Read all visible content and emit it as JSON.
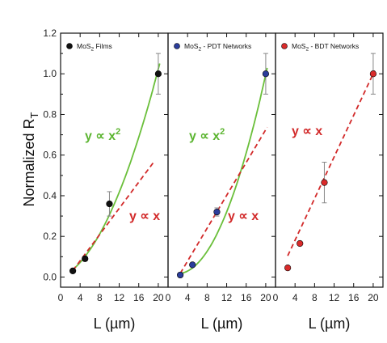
{
  "chart_data": {
    "type": "scatter",
    "ylabel_base": "Normalized R",
    "ylabel_sub": "T",
    "xlabel": "L (µm)",
    "ylim": [
      -0.05,
      1.2
    ],
    "yticks": [
      "0.0",
      "0.2",
      "0.4",
      "0.6",
      "0.8",
      "1.0",
      "1.2"
    ],
    "ytick_values": [
      0.0,
      0.2,
      0.4,
      0.6,
      0.8,
      1.0,
      1.2
    ],
    "xlim": [
      0,
      22
    ],
    "xticks": [
      0,
      4,
      8,
      12,
      16,
      20
    ],
    "colors": {
      "quadratic_fit": "#6abf3a",
      "linear_fit": "#d22a2a",
      "annot_quadratic": "#5cb531",
      "annot_linear": "#d22a2a",
      "films": "#111111",
      "pdt": "#2b3d9b",
      "bdt": "#d92b2b",
      "errorbar": "#888888"
    },
    "panels": [
      {
        "legend_base": "MoS",
        "legend_sub": "2",
        "legend_rest": " Films",
        "marker_color": "#111111",
        "points": [
          {
            "x": 2.5,
            "y": 0.03,
            "err": 0.0
          },
          {
            "x": 5,
            "y": 0.09,
            "err": 0.0
          },
          {
            "x": 10,
            "y": 0.36,
            "err": 0.06
          },
          {
            "x": 20,
            "y": 1.0,
            "err": 0.1
          }
        ],
        "quadratic_fit": {
          "x0": 2.5,
          "x1": 20.3,
          "coef": [
            -0.0029,
            0.0105,
            0.00204
          ]
        },
        "linear_fit": {
          "x0": 2.5,
          "x1": 19.3,
          "coef": [
            -0.049,
            0.03223
          ]
        },
        "annot_quadratic": {
          "base": "y ∝ x",
          "sup": "2"
        },
        "annot_linear": "y ∝ x"
      },
      {
        "legend_base": "MoS",
        "legend_sub": "2",
        "legend_rest": " - PDT Networks",
        "marker_color": "#2b3d9b",
        "points": [
          {
            "x": 2.5,
            "y": 0.01,
            "err": 0.0
          },
          {
            "x": 5,
            "y": 0.06,
            "err": 0.0
          },
          {
            "x": 10,
            "y": 0.32,
            "err": 0.02
          },
          {
            "x": 20,
            "y": 1.0,
            "err": 0.1
          }
        ],
        "quadratic_fit": {
          "x0": 2.5,
          "x1": 20.3,
          "coef": [
            0.0284,
            -0.0118,
            0.00301
          ]
        },
        "linear_fit": {
          "x0": 2.5,
          "x1": 20.3,
          "coef": [
            -0.083,
            0.0404
          ]
        },
        "annot_quadratic": {
          "base": "y ∝ x",
          "sup": "2"
        },
        "annot_linear": "y ∝ x"
      },
      {
        "legend_base": "MoS",
        "legend_sub": "2",
        "legend_rest": " - BDT Networks",
        "marker_color": "#d92b2b",
        "points": [
          {
            "x": 2.5,
            "y": 0.045,
            "err": 0.0
          },
          {
            "x": 5,
            "y": 0.165,
            "err": 0.0
          },
          {
            "x": 10,
            "y": 0.465,
            "err": 0.1
          },
          {
            "x": 20,
            "y": 1.0,
            "err": 0.1
          }
        ],
        "linear_fit": {
          "x0": 2.5,
          "x1": 20.3,
          "coef": [
            -0.0235,
            0.0512
          ]
        },
        "annot_linear": "y ∝ x"
      }
    ]
  }
}
